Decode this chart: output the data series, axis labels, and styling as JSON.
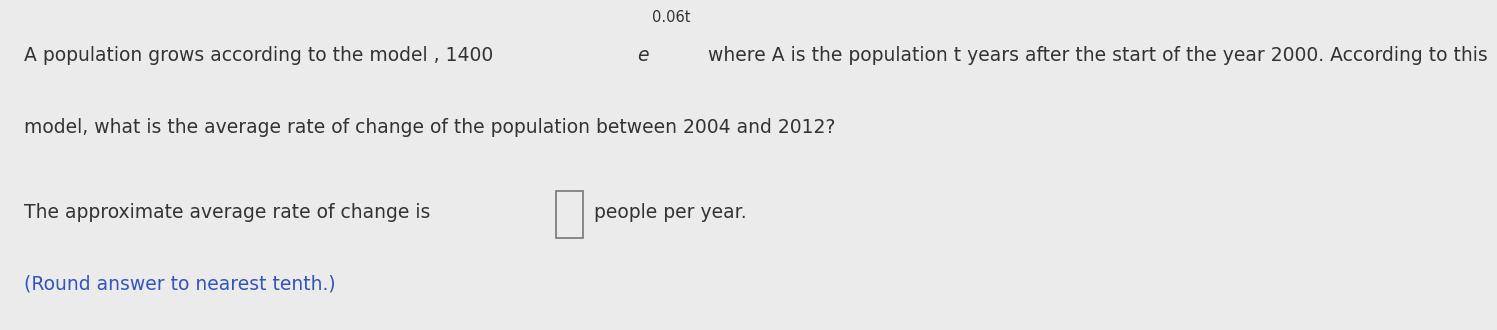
{
  "bg_color": "#ebebeb",
  "line1_pre_e": "A population grows according to the model , 1400 ",
  "e_char": "e",
  "superscript": "0.06t",
  "line1_post_sup": " where A is the population t years after the start of the year 2000. According to this",
  "line2": "model, what is the average rate of change of the population between 2004 and 2012?",
  "line3_pre": "The approximate average rate of change is ",
  "line3_post": " people per year.",
  "line4": "(Round answer to nearest tenth.)",
  "main_color": "#333333",
  "blue_color": "#3355bb",
  "font_size_main": 13.5,
  "font_size_sup": 10.5
}
